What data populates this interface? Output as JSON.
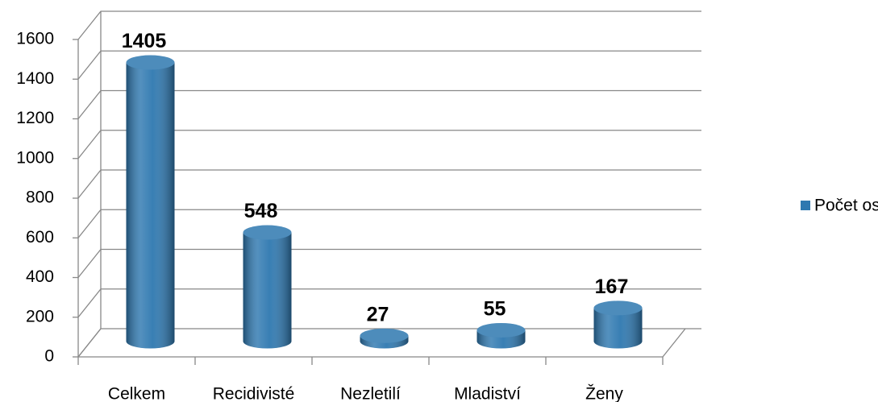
{
  "chart_data": {
    "type": "bar3d",
    "categories": [
      "Celkem",
      "Recidivisté",
      "Nezletilí",
      "Mladiství",
      "Ženy"
    ],
    "series": [
      {
        "name": "Počet osob",
        "color": "#2e78b0",
        "values": [
          1405,
          548,
          27,
          55,
          167
        ]
      }
    ],
    "ylim": [
      0,
      1600
    ],
    "yticks": [
      0,
      200,
      400,
      600,
      800,
      1000,
      1200,
      1400,
      1600
    ],
    "grid": true,
    "legend": "right"
  }
}
